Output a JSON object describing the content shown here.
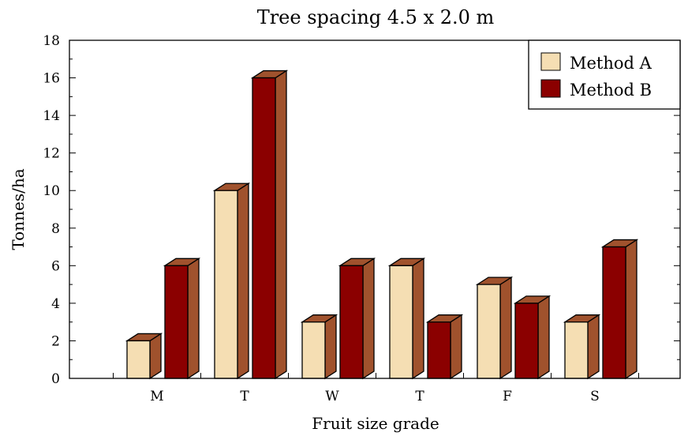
{
  "chart_data": {
    "type": "bar",
    "title": "Tree spacing 4.5 x 2.0 m",
    "xlabel": "Fruit size grade",
    "ylabel": "Tonnes/ha",
    "categories": [
      "M",
      "T",
      "W",
      "T",
      "F",
      "S"
    ],
    "series": [
      {
        "name": "Method A",
        "values": [
          2,
          10,
          3,
          6,
          5,
          3
        ],
        "color": "#F5DEB3"
      },
      {
        "name": "Method B",
        "values": [
          6,
          16,
          6,
          3,
          4,
          7
        ],
        "color": "#8B0000"
      }
    ],
    "side_color": "#A0522D",
    "ylim": [
      0,
      18
    ],
    "yticks": [
      0,
      2,
      4,
      6,
      8,
      10,
      12,
      14,
      16,
      18
    ],
    "grid": false,
    "legend_position": "top-right",
    "style": "3d-bar"
  }
}
